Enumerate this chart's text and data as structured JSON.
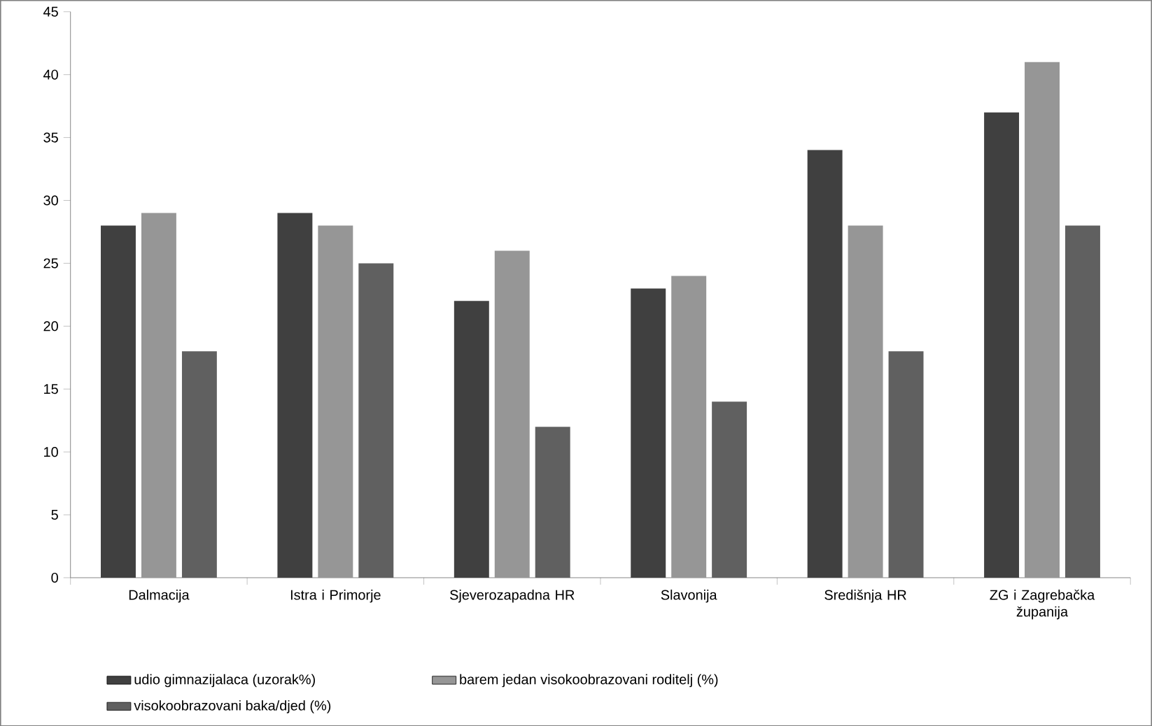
{
  "chart_data": {
    "type": "bar",
    "categories": [
      "Dalmacija",
      "Istra i Primorje",
      "Sjeverozapadna HR",
      "Slavonija",
      "Središnja HR",
      "ZG i Zagrebačka županija"
    ],
    "series": [
      {
        "name": "udio gimnazijalaca (uzorak%)",
        "color": "#404040",
        "values": [
          28,
          29,
          22,
          23,
          34,
          37
        ]
      },
      {
        "name": "barem jedan visokoobrazovani roditelj (%)",
        "color": "#969696",
        "values": [
          29,
          28,
          26,
          24,
          28,
          41
        ]
      },
      {
        "name": "visokoobrazovani baka/djed (%)",
        "color": "#606060",
        "values": [
          18,
          25,
          12,
          14,
          18,
          28
        ]
      }
    ],
    "ylim": [
      0,
      45
    ],
    "yticks": [
      0,
      5,
      10,
      15,
      20,
      25,
      30,
      35,
      40,
      45
    ],
    "legend": "bottom"
  }
}
